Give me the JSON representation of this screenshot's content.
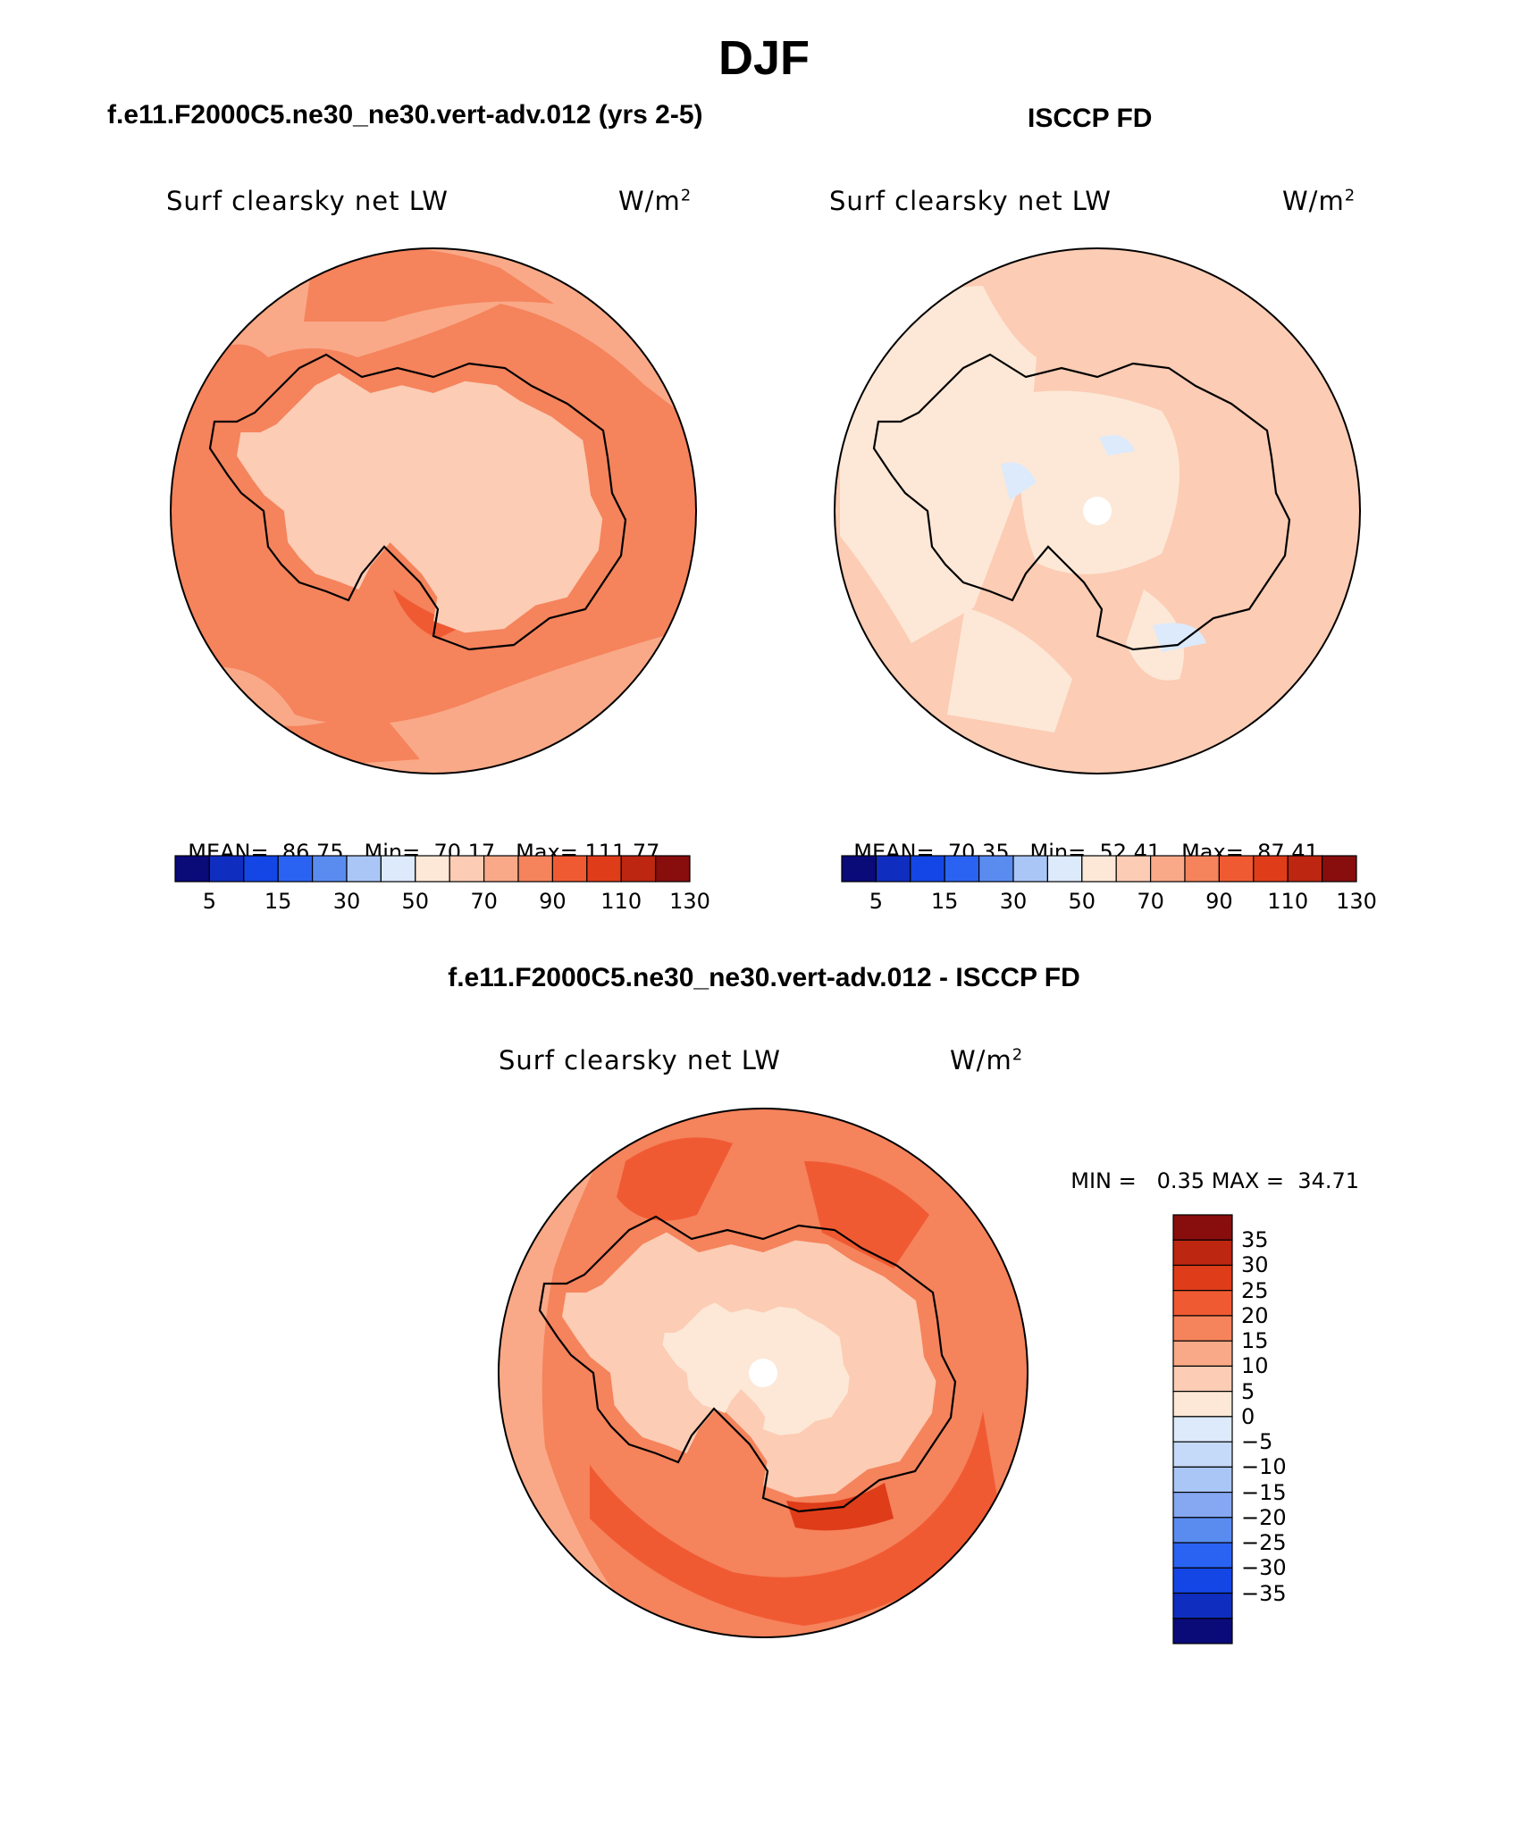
{
  "page": {
    "season_title": "DJF",
    "case_title": "f.e11.F2000C5.ne30_ne30.vert-adv.012 (yrs 2-5)",
    "obs_title": "ISCCP FD",
    "diff_title": "f.e11.F2000C5.ne30_ne30.vert-adv.012 - ISCCP FD"
  },
  "panels": {
    "model": {
      "variable": "Surf clearsky net LW",
      "units_base": "W/m",
      "units_exp": "2",
      "mean_label": "MEAN=",
      "mean": "86.75",
      "min_label": "Min=",
      "min": "70.17",
      "max_label": "Max=",
      "max": "111.77"
    },
    "obs": {
      "variable": "Surf clearsky net LW",
      "units_base": "W/m",
      "units_exp": "2",
      "mean_label": "MEAN=",
      "mean": "70.35",
      "min_label": "Min=",
      "min": "52.41",
      "max_label": "Max=",
      "max": "87.41"
    },
    "diff": {
      "variable": "Surf clearsky net LW",
      "units_base": "W/m",
      "units_exp": "2",
      "min_label": "MIN =",
      "min": "0.35",
      "max_label": "MAX =",
      "max": "34.71"
    }
  },
  "colorbar_abs": {
    "colors": [
      "#0a0a78",
      "#0f2dbe",
      "#1446e6",
      "#2a63f2",
      "#5a8cf0",
      "#a9c6f6",
      "#dceafc",
      "#fde8d7",
      "#fcccb4",
      "#f9a987",
      "#f5835c",
      "#f05a32",
      "#df3c1a",
      "#bd2610",
      "#880d0d"
    ],
    "tick_labels": [
      "5",
      "15",
      "30",
      "50",
      "70",
      "90",
      "110",
      "130"
    ]
  },
  "colorbar_diff": {
    "colors": [
      "#880d0d",
      "#bd2610",
      "#df3c1a",
      "#f05a32",
      "#f5835c",
      "#f9a987",
      "#fcccb4",
      "#fde8d7",
      "#dceafc",
      "#c5daf8",
      "#a9c6f6",
      "#86a8f2",
      "#5a8cf0",
      "#2a63f2",
      "#1446e6",
      "#0f2dbe",
      "#0a0a78"
    ],
    "tick_labels": [
      "35",
      "30",
      "25",
      "20",
      "15",
      "10",
      "5",
      "0",
      "−5",
      "−10",
      "−15",
      "−20",
      "−25",
      "−30",
      "−35"
    ]
  },
  "chart_data": [
    {
      "type": "heatmap",
      "title": "Surf clearsky net LW",
      "subtitle": "f.e11.F2000C5.ne30_ne30.vert-adv.012 (yrs 2-5)",
      "units": "W/m2",
      "projection": "south polar stereographic",
      "mean": 86.75,
      "min": 70.17,
      "max": 111.77,
      "levels": [
        5,
        10,
        15,
        20,
        30,
        40,
        50,
        60,
        70,
        80,
        90,
        100,
        110,
        120,
        130
      ]
    },
    {
      "type": "heatmap",
      "title": "Surf clearsky net LW",
      "subtitle": "ISCCP FD",
      "units": "W/m2",
      "projection": "south polar stereographic",
      "mean": 70.35,
      "min": 52.41,
      "max": 87.41,
      "levels": [
        5,
        10,
        15,
        20,
        30,
        40,
        50,
        60,
        70,
        80,
        90,
        100,
        110,
        120,
        130
      ]
    },
    {
      "type": "heatmap",
      "title": "Surf clearsky net LW",
      "subtitle": "f.e11.F2000C5.ne30_ne30.vert-adv.012 - ISCCP FD",
      "units": "W/m2",
      "projection": "south polar stereographic",
      "min": 0.35,
      "max": 34.71,
      "levels": [
        -35,
        -30,
        -25,
        -20,
        -15,
        -10,
        -5,
        0,
        5,
        10,
        15,
        20,
        25,
        30,
        35
      ]
    }
  ]
}
